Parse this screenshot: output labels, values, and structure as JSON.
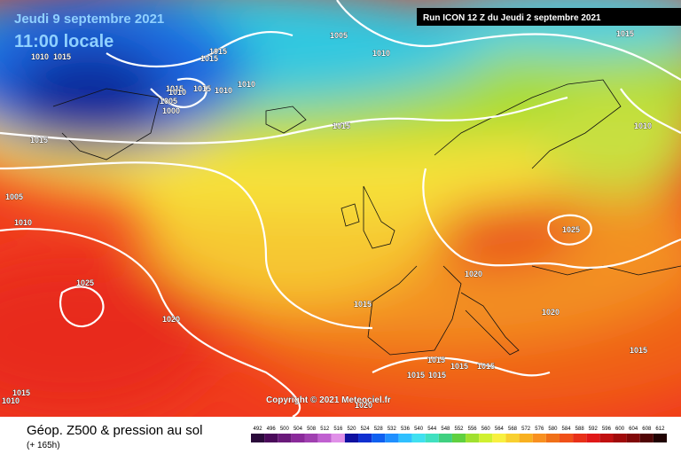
{
  "header": {
    "date": "Jeudi 9 septembre 2021",
    "time": "11:00 locale",
    "run": "Run ICON 12 Z du Jeudi 2 septembre 2021"
  },
  "copyright": "Copyright © 2021 Meteociel.fr",
  "footer": {
    "title": "Géop. Z500 & pression au sol",
    "lead": "(+ 165h)"
  },
  "legend": {
    "ticks": [
      "492",
      "496",
      "500",
      "504",
      "508",
      "512",
      "516",
      "520",
      "524",
      "528",
      "532",
      "536",
      "540",
      "544",
      "548",
      "552",
      "556",
      "560",
      "564",
      "568",
      "572",
      "576",
      "580",
      "584",
      "588",
      "592",
      "596",
      "600",
      "604",
      "608",
      "612"
    ]
  },
  "isobar_labels": [
    "1005",
    "1010",
    "1015",
    "1010",
    "1015",
    "1015",
    "1015",
    "1010",
    "1015",
    "1010",
    "1015",
    "1010",
    "1005",
    "1000",
    "1015",
    "1015",
    "1010",
    "1005",
    "1010",
    "1025",
    "1025",
    "1020",
    "1020",
    "1015",
    "1020",
    "1015",
    "1015",
    "1015",
    "1015",
    "1015",
    "1015",
    "1015",
    "1010",
    "1020"
  ]
}
